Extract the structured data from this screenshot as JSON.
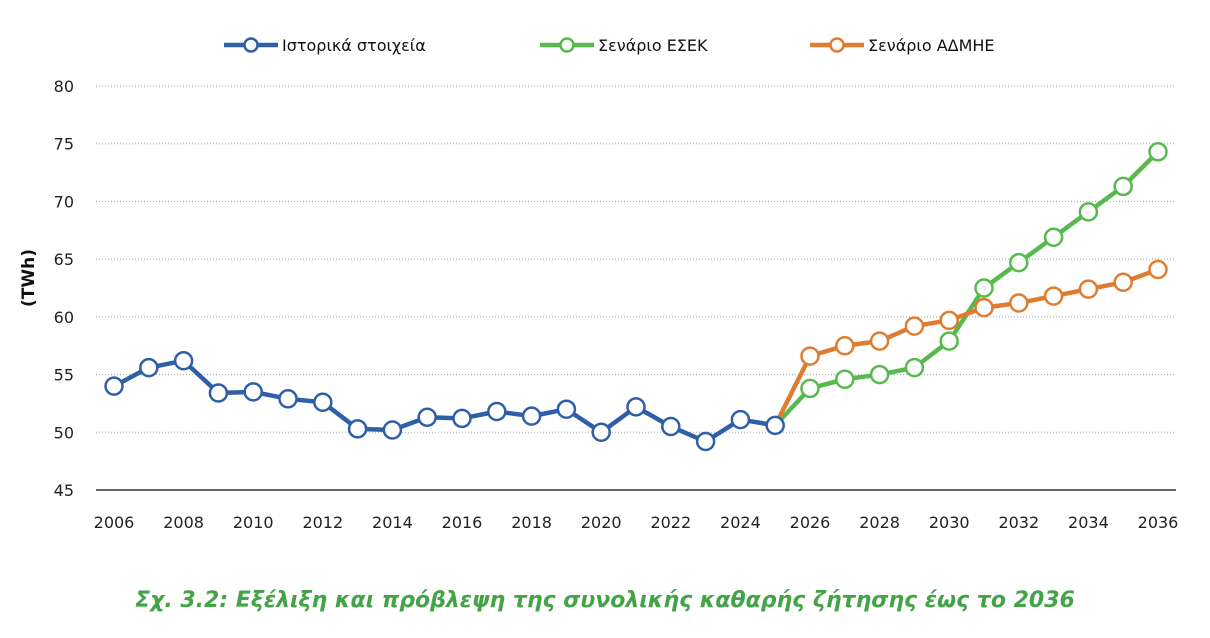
{
  "caption": "Σχ. 3.2: Εξέλιξη και πρόβλεψη της συνολικής καθαρής ζήτησης έως το 2036",
  "chart_data": {
    "type": "line",
    "title": "",
    "xlabel": "",
    "ylabel": "(TWh)",
    "xlim": [
      2006,
      2036
    ],
    "ylim": [
      45,
      80
    ],
    "y_ticks": [
      45,
      50,
      55,
      60,
      65,
      70,
      75,
      80
    ],
    "x_ticks": [
      2006,
      2008,
      2010,
      2012,
      2014,
      2016,
      2018,
      2020,
      2022,
      2024,
      2026,
      2028,
      2030,
      2032,
      2034,
      2036
    ],
    "grid": "horizontal dotted",
    "legend_position": "top",
    "series": [
      {
        "name": "Ιστορικά στοιχεία",
        "color": "#2e5fa8",
        "x": [
          2006,
          2007,
          2008,
          2009,
          2010,
          2011,
          2012,
          2013,
          2014,
          2015,
          2016,
          2017,
          2018,
          2019,
          2020,
          2021,
          2022,
          2023,
          2024,
          2025
        ],
        "y": [
          54.0,
          55.6,
          56.2,
          53.4,
          53.5,
          52.9,
          52.6,
          50.3,
          50.2,
          51.3,
          51.2,
          51.8,
          51.4,
          52.0,
          50.0,
          52.2,
          50.5,
          49.2,
          51.1,
          50.6
        ]
      },
      {
        "name": "Σενάριο ΕΣΕΚ",
        "color": "#58b94e",
        "x": [
          2025,
          2026,
          2027,
          2028,
          2029,
          2030,
          2031,
          2032,
          2033,
          2034,
          2035,
          2036
        ],
        "y": [
          50.6,
          53.8,
          54.6,
          55.0,
          55.6,
          57.9,
          62.5,
          64.7,
          66.9,
          69.1,
          71.3,
          74.3
        ]
      },
      {
        "name": "Σενάριο ΑΔΜΗΕ",
        "color": "#e07b32",
        "x": [
          2025,
          2026,
          2027,
          2028,
          2029,
          2030,
          2031,
          2032,
          2033,
          2034,
          2035,
          2036
        ],
        "y": [
          50.6,
          56.6,
          57.5,
          57.9,
          59.2,
          59.7,
          60.8,
          61.2,
          61.8,
          62.4,
          63.0,
          64.1
        ]
      }
    ]
  }
}
